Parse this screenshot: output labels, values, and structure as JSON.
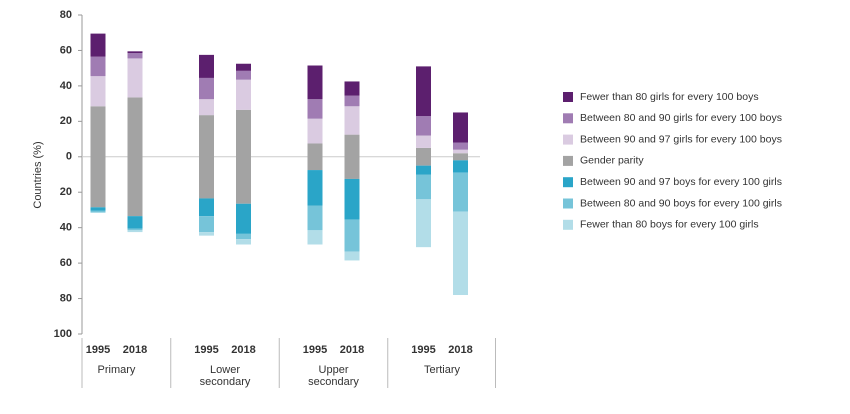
{
  "chart_data": {
    "type": "diverging_stacked_bar",
    "y_label": "Countries (%)",
    "categories": [
      "1995",
      "2018",
      "1995",
      "2018",
      "1995",
      "2018",
      "1995",
      "2018"
    ],
    "groups": [
      "Primary",
      "Lower secondary",
      "Upper secondary",
      "Tertiary"
    ],
    "ylim": [
      -100,
      80
    ],
    "yticks": [
      80,
      60,
      40,
      20,
      0,
      {
        "value": -20,
        "label": "20"
      },
      {
        "value": -40,
        "label": "40"
      },
      {
        "value": -60,
        "label": "60"
      },
      {
        "value": -80,
        "label": "80"
      },
      {
        "value": -100,
        "label": "100"
      }
    ],
    "series": [
      {
        "name": "Fewer than 80 girls for every 100 boys",
        "color": "#5c1f6e",
        "side": "above",
        "values": [
          13,
          1,
          13,
          4,
          19,
          8,
          28,
          17
        ]
      },
      {
        "name": "Between 80 and 90 girls for every 100 boys",
        "color": "#a07cb3",
        "side": "above",
        "values": [
          11,
          3,
          12,
          5,
          11,
          6,
          11,
          4
        ]
      },
      {
        "name": "Between 90 and 97 girls for every 100 boys",
        "color": "#dacbe1",
        "side": "above",
        "values": [
          17,
          22,
          9,
          17,
          14,
          16,
          7,
          2
        ]
      },
      {
        "name": "Gender parity",
        "color": "#a3a3a3",
        "side": "center",
        "values": [
          57,
          67,
          47,
          53,
          15,
          25,
          10,
          4
        ]
      },
      {
        "name": "Between 90 and 97 boys for every 100 girls",
        "color": "#2aa5c8",
        "side": "below",
        "values": [
          2,
          7,
          10,
          17,
          20,
          23,
          5,
          7
        ]
      },
      {
        "name": "Between 80 and 90 boys for every 100 girls",
        "color": "#76c4d9",
        "side": "below",
        "values": [
          1,
          1,
          9,
          3,
          14,
          18,
          14,
          22
        ]
      },
      {
        "name": "Fewer than 80 boys for every 100 girls",
        "color": "#b2dde8",
        "side": "below",
        "values": [
          0,
          1,
          2,
          3,
          8,
          5,
          27,
          47
        ]
      }
    ]
  }
}
